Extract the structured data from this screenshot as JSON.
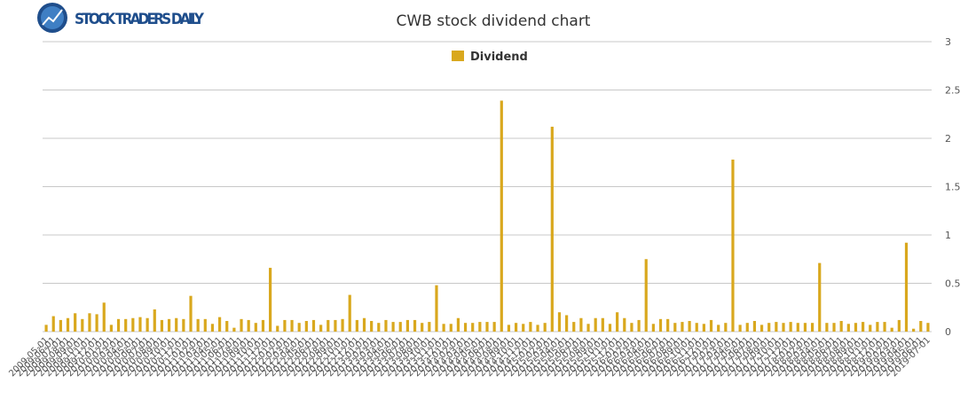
{
  "brand": "STOCK TRADERS DAILY",
  "chart_data": {
    "type": "bar",
    "title": "CWB stock dividend chart",
    "series": [
      {
        "name": "Dividend",
        "color": "#d9a81e",
        "values": [
          0.07,
          0.16,
          0.12,
          0.14,
          0.19,
          0.13,
          0.19,
          0.18,
          0.3,
          0.07,
          0.13,
          0.13,
          0.14,
          0.15,
          0.14,
          0.23,
          0.12,
          0.13,
          0.14,
          0.13,
          0.37,
          0.13,
          0.13,
          0.08,
          0.15,
          0.11,
          0.04,
          0.13,
          0.12,
          0.09,
          0.12,
          0.66,
          0.06,
          0.12,
          0.12,
          0.09,
          0.11,
          0.12,
          0.07,
          0.12,
          0.12,
          0.13,
          0.38,
          0.12,
          0.14,
          0.11,
          0.09,
          0.12,
          0.1,
          0.1,
          0.12,
          0.12,
          0.09,
          0.1,
          0.48,
          0.08,
          0.08,
          0.14,
          0.09,
          0.09,
          0.1,
          0.1,
          0.1,
          2.39,
          0.07,
          0.09,
          0.08,
          0.1,
          0.07,
          0.09,
          2.12,
          0.2,
          0.17,
          0.1,
          0.14,
          0.08,
          0.14,
          0.14,
          0.08,
          0.2,
          0.14,
          0.09,
          0.12,
          0.75,
          0.08,
          0.13,
          0.13,
          0.09,
          0.1,
          0.11,
          0.09,
          0.08,
          0.12,
          0.07,
          0.09,
          1.78,
          0.07,
          0.09,
          0.11,
          0.07,
          0.09,
          0.1,
          0.09,
          0.1,
          0.09,
          0.09,
          0.09,
          0.71,
          0.09,
          0.09,
          0.11,
          0.08,
          0.09,
          0.1,
          0.07,
          0.1,
          0.1,
          0.04,
          0.12,
          0.92,
          0.03,
          0.11,
          0.09
        ]
      }
    ],
    "categories": [
      "2009-05-01",
      "2009-06-01",
      "2009-07-01",
      "2009-08-01",
      "2009-09-01",
      "2009-10-01",
      "2009-11-01",
      "2009-12-01",
      "2010-01-01",
      "2010-02-01",
      "2010-03-01",
      "2010-04-01",
      "2010-05-01",
      "2010-06-01",
      "2010-07-01",
      "2010-08-01",
      "2010-09-01",
      "2010-10-01",
      "2010-11-01",
      "2010-12-01",
      "2011-01-01",
      "2011-02-01",
      "2011-03-01",
      "2011-04-01",
      "2011-05-01",
      "2011-06-01",
      "2011-07-01",
      "2011-08-01",
      "2011-09-01",
      "2011-10-01",
      "2011-11-01",
      "2011-12-01",
      "2012-01-01",
      "2012-02-01",
      "2012-03-01",
      "2012-04-01",
      "2012-05-01",
      "2012-06-01",
      "2012-07-01",
      "2012-08-01",
      "2012-09-01",
      "2012-10-01",
      "2012-11-01",
      "2012-12-01",
      "2013-01-01",
      "2013-02-01",
      "2013-03-01",
      "2013-04-01",
      "2013-05-01",
      "2013-06-01",
      "2013-07-01",
      "2013-08-01",
      "2013-09-01",
      "2013-10-01",
      "2013-11-01",
      "2013-12-01",
      "2014-01-01",
      "2014-02-01",
      "2014-03-01",
      "2014-04-01",
      "2014-05-01",
      "2014-06-01",
      "2014-07-01",
      "2014-08-01",
      "2014-09-01",
      "2014-10-01",
      "2014-11-01",
      "2014-12-01",
      "2015-01-01",
      "2015-02-01",
      "2015-03-01",
      "2015-04-01",
      "2015-05-01",
      "2015-06-01",
      "2015-07-01",
      "2015-08-01",
      "2015-09-01",
      "2015-10-01",
      "2015-11-01",
      "2015-12-01",
      "2016-01-01",
      "2016-02-01",
      "2016-03-01",
      "2016-04-01",
      "2016-05-01",
      "2016-06-01",
      "2016-07-01",
      "2016-08-01",
      "2016-09-01",
      "2016-10-01",
      "2016-11-01",
      "2016-12-01",
      "2017-01-01",
      "2017-02-01",
      "2017-03-01",
      "2017-04-01",
      "2017-05-01",
      "2017-06-01",
      "2017-07-01",
      "2017-08-01",
      "2017-09-01",
      "2017-10-01",
      "2017-11-01",
      "2017-12-01",
      "2018-01-01",
      "2018-02-01",
      "2018-03-01",
      "2018-04-01",
      "2018-05-01",
      "2018-06-01",
      "2018-07-01",
      "2018-08-01",
      "2018-09-01",
      "2018-10-01",
      "2018-11-01",
      "2018-12-01",
      "2019-01-01",
      "2019-02-01",
      "2019-03-01",
      "2019-04-01",
      "2019-05-01",
      "2019-06-01",
      "2019-07-01"
    ],
    "ylim": [
      0,
      3
    ],
    "yticks": [
      0,
      0.5,
      1,
      1.5,
      2,
      2.5,
      3
    ],
    "grid": true,
    "legend": "top"
  }
}
